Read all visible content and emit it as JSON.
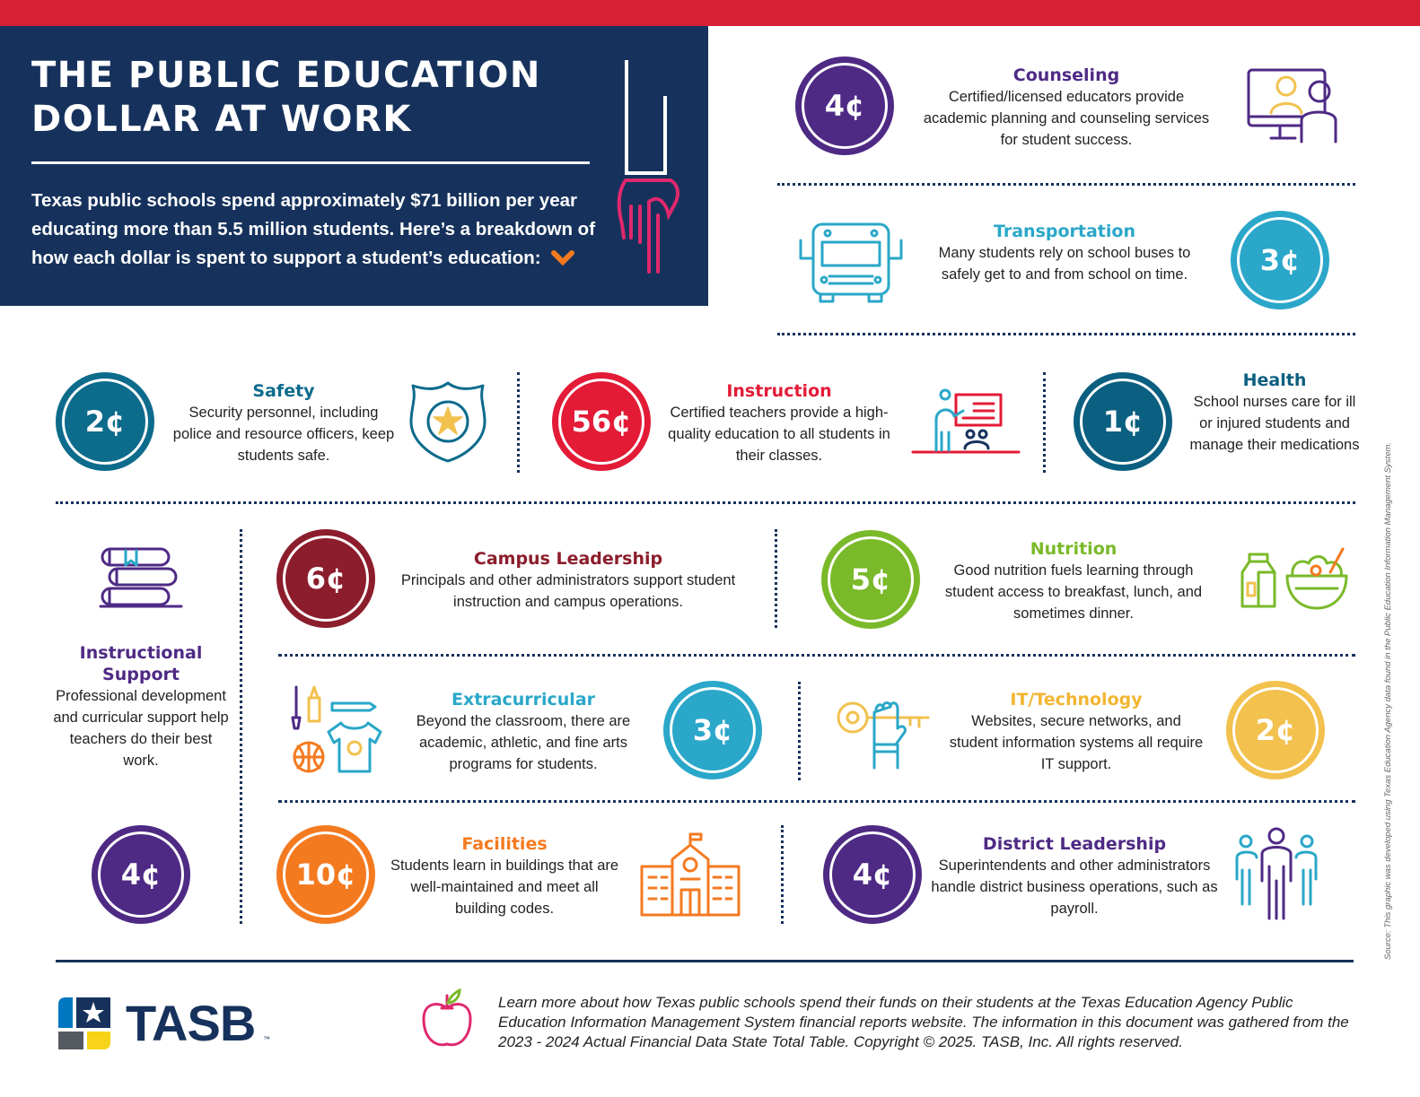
{
  "header": {
    "title": "The Public Education Dollar at Work",
    "intro": "Texas public schools spend approximately $71 billion per year educating more than 5.5 million students. Here’s a breakdown of how each dollar is spent to support a student’s education:"
  },
  "categories": [
    {
      "id": "counseling",
      "value": "4¢",
      "title": "Counseling",
      "description": "Certified/licensed educators provide academic planning and counseling services for student success.",
      "color": "#4e2a84",
      "icon": "counselor-computer-icon"
    },
    {
      "id": "transportation",
      "value": "3¢",
      "title": "Transportation",
      "description": "Many students rely on school buses to safely get to and from school on time.",
      "color": "#2aa7c9",
      "icon": "school-bus-icon"
    },
    {
      "id": "safety",
      "value": "2¢",
      "title": "Safety",
      "description": "Security personnel, including police and resource officers, keep students safe.",
      "color": "#0d6b8c",
      "icon": "police-badge-icon"
    },
    {
      "id": "instruction",
      "value": "56¢",
      "title": "Instruction",
      "description": "Certified teachers provide a high-quality education to all students in their classes.",
      "color": "#e31b37",
      "icon": "teacher-classroom-icon"
    },
    {
      "id": "health",
      "value": "1¢",
      "title": "Health",
      "description": "School nurses care for ill or injured students and manage their medications",
      "color": "#0b5f80",
      "icon": ""
    },
    {
      "id": "instructional-support",
      "value": "4¢",
      "title": "Instructional Support",
      "description": "Professional development and curricular support help teachers do their best work.",
      "color": "#4e2a84",
      "icon": "books-icon"
    },
    {
      "id": "campus-leadership",
      "value": "6¢",
      "title": "Campus Leadership",
      "description": "Principals and other administrators support student instruction and campus operations.",
      "color": "#8c1d2c",
      "icon": ""
    },
    {
      "id": "nutrition",
      "value": "5¢",
      "title": "Nutrition",
      "description": "Good nutrition fuels learning through student access to breakfast, lunch, and sometimes dinner.",
      "color": "#7ab929",
      "icon": "milk-salad-icon"
    },
    {
      "id": "extracurricular",
      "value": "3¢",
      "title": "Extracurricular",
      "description": "Beyond the classroom, there are academic, athletic, and fine arts programs for students.",
      "color": "#2aa7c9",
      "icon": "arts-sports-icon"
    },
    {
      "id": "it-technology",
      "value": "2¢",
      "title": "IT/Technology",
      "description": "Websites, secure networks, and student information systems all require IT support.",
      "color": "#f2c14e",
      "icon": "hand-key-icon"
    },
    {
      "id": "facilities",
      "value": "10¢",
      "title": "Facilities",
      "description": "Students learn in buildings that are well-maintained and meet all building codes.",
      "color": "#f47a20",
      "icon": "school-building-icon"
    },
    {
      "id": "district-leadership",
      "value": "4¢",
      "title": "District Leadership",
      "description": "Superintendents and other administrators handle district business operations, such as payroll.",
      "color": "#4e2a84",
      "icon": "people-group-icon"
    }
  ],
  "footer": {
    "logo_text": "TASB",
    "logo_tm": "™",
    "text": "Learn more about how Texas public schools spend their funds on their students at the Texas Education Agency Public Education Information Management System financial reports website. The information in this document was gathered from the 2023 - 2024 Actual Financial Data State Total Table. Copyright © 2025. TASB, Inc. All rights reserved.",
    "source": "Source: This graphic was developed using Texas Education Agency data found in the Public Education Information Management System."
  },
  "colors": {
    "navy": "#16325c",
    "red": "#d71f35",
    "pink": "#e0286e",
    "orange": "#f47a20"
  }
}
